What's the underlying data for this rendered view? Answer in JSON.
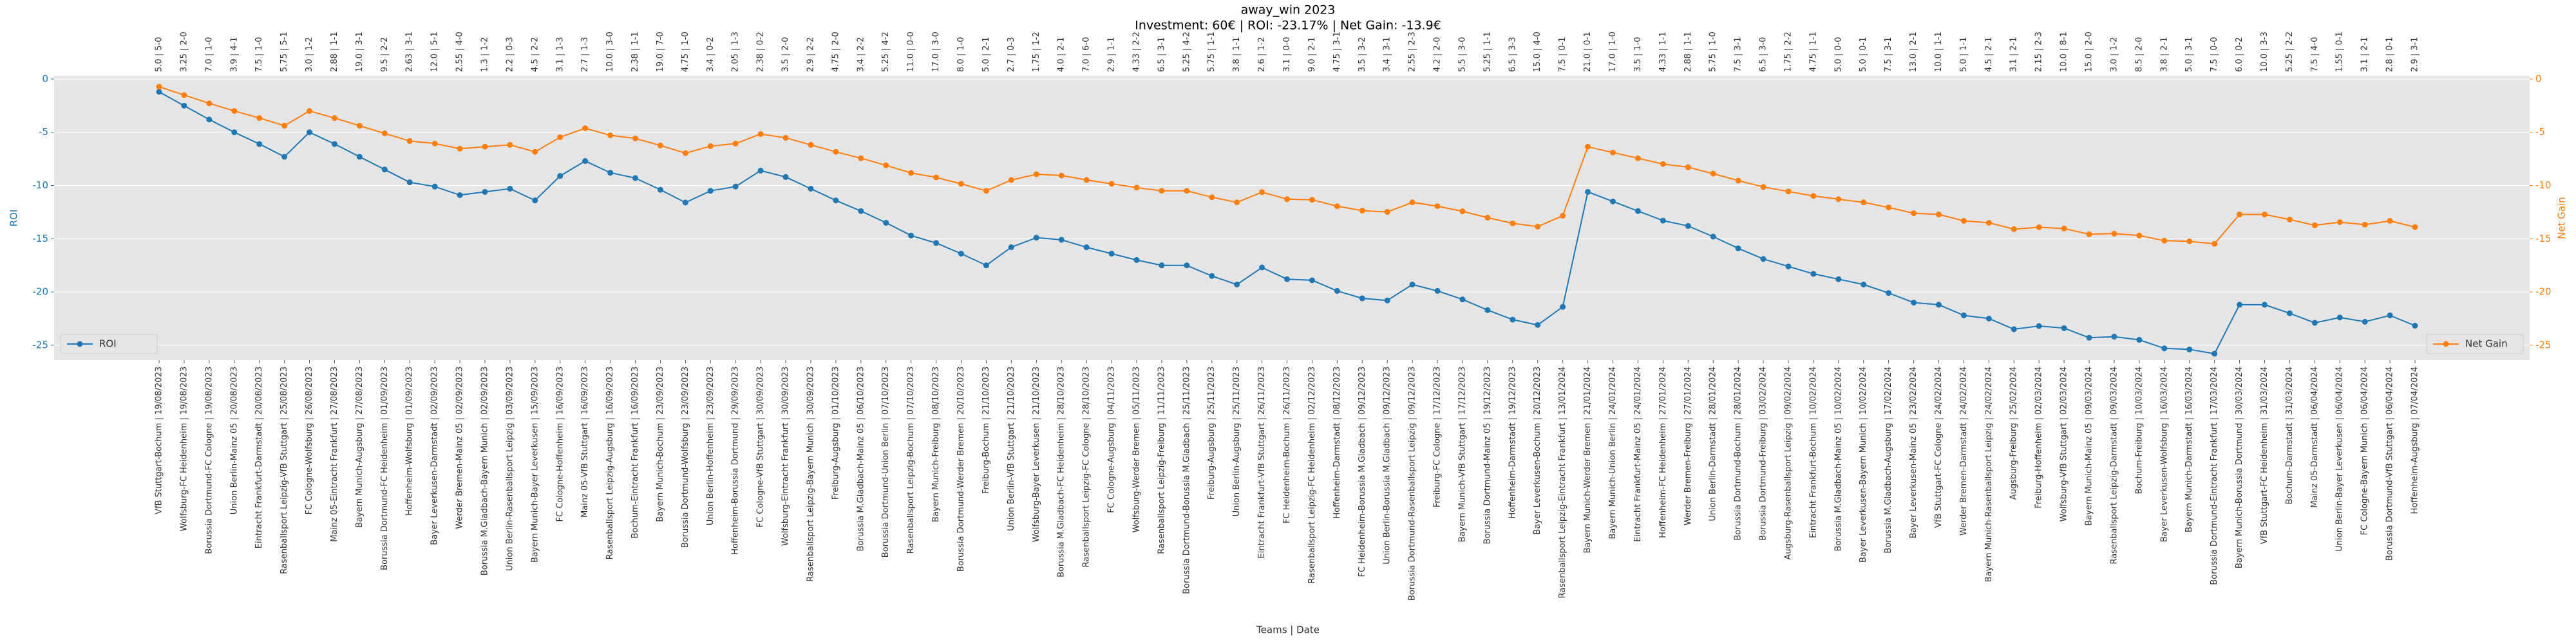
{
  "chart_data": {
    "type": "line",
    "title": "away_win 2023",
    "subtitle": "Investment: 60€ | ROI: -23.17% | Net Gain: -13.9€",
    "xlabel": "Teams | Date",
    "ylabel": "ROI",
    "y2label": "Net Gain",
    "categories": [
      "VfB Stuttgart-Bochum | 19/08/2023",
      "Wolfsburg-FC Heidenheim | 19/08/2023",
      "Borussia Dortmund-FC Cologne | 19/08/2023",
      "Union Berlin-Mainz 05 | 20/08/2023",
      "Eintracht Frankfurt-Darmstadt | 20/08/2023",
      "Rasenballsport Leipzig-VfB Stuttgart | 25/08/2023",
      "FC Cologne-Wolfsburg | 26/08/2023",
      "Mainz 05-Eintracht Frankfurt | 27/08/2023",
      "Bayern Munich-Augsburg | 27/08/2023",
      "Borussia Dortmund-FC Heidenheim | 01/09/2023",
      "Hoffenheim-Wolfsburg | 01/09/2023",
      "Bayer Leverkusen-Darmstadt | 02/09/2023",
      "Werder Bremen-Mainz 05 | 02/09/2023",
      "Borussia M.Gladbach-Bayern Munich | 02/09/2023",
      "Union Berlin-Rasenballsport Leipzig | 03/09/2023",
      "Bayern Munich-Bayer Leverkusen | 15/09/2023",
      "FC Cologne-Hoffenheim | 16/09/2023",
      "Mainz 05-VfB Stuttgart | 16/09/2023",
      "Rasenballsport Leipzig-Augsburg | 16/09/2023",
      "Bochum-Eintracht Frankfurt | 16/09/2023",
      "Bayern Munich-Bochum | 23/09/2023",
      "Borussia Dortmund-Wolfsburg | 23/09/2023",
      "Union Berlin-Hoffenheim | 23/09/2023",
      "Hoffenheim-Borussia Dortmund | 29/09/2023",
      "FC Cologne-VfB Stuttgart | 30/09/2023",
      "Wolfsburg-Eintracht Frankfurt | 30/09/2023",
      "Rasenballsport Leipzig-Bayern Munich | 30/09/2023",
      "Freiburg-Augsburg | 01/10/2023",
      "Borussia M.Gladbach-Mainz 05 | 06/10/2023",
      "Borussia Dortmund-Union Berlin | 07/10/2023",
      "Rasenballsport Leipzig-Bochum | 07/10/2023",
      "Bayern Munich-Freiburg | 08/10/2023",
      "Borussia Dortmund-Werder Bremen | 20/10/2023",
      "Freiburg-Bochum | 21/10/2023",
      "Union Berlin-VfB Stuttgart | 21/10/2023",
      "Wolfsburg-Bayer Leverkusen | 21/10/2023",
      "Borussia M.Gladbach-FC Heidenheim | 28/10/2023",
      "Rasenballsport Leipzig-FC Cologne | 28/10/2023",
      "FC Cologne-Augsburg | 04/11/2023",
      "Wolfsburg-Werder Bremen | 05/11/2023",
      "Rasenballsport Leipzig-Freiburg | 11/11/2023",
      "Borussia Dortmund-Borussia M.Gladbach | 25/11/2023",
      "Freiburg-Augsburg | 25/11/2023",
      "Union Berlin-Augsburg | 25/11/2023",
      "Eintracht Frankfurt-VfB Stuttgart | 26/11/2023",
      "FC Heidenheim-Bochum | 26/11/2023",
      "Rasenballsport Leipzig-FC Heidenheim | 02/12/2023",
      "Hoffenheim-Darmstadt | 08/12/2023",
      "FC Heidenheim-Borussia M.Gladbach | 09/12/2023",
      "Union Berlin-Borussia M.Gladbach | 09/12/2023",
      "Borussia Dortmund-Rasenballsport Leipzig | 09/12/2023",
      "Freiburg-FC Cologne | 17/12/2023",
      "Bayern Munich-VfB Stuttgart | 17/12/2023",
      "Borussia Dortmund-Mainz 05 | 19/12/2023",
      "Hoffenheim-Darmstadt | 19/12/2023",
      "Bayer Leverkusen-Bochum | 20/12/2023",
      "Rasenballsport Leipzig-Eintracht Frankfurt | 13/01/2024",
      "Bayern Munich-Werder Bremen | 21/01/2024",
      "Bayern Munich-Union Berlin | 24/01/2024",
      "Eintracht Frankfurt-Mainz 05 | 24/01/2024",
      "Hoffenheim-FC Heidenheim | 27/01/2024",
      "Werder Bremen-Freiburg | 27/01/2024",
      "Union Berlin-Darmstadt | 28/01/2024",
      "Borussia Dortmund-Bochum | 28/01/2024",
      "Borussia Dortmund-Freiburg | 03/02/2024",
      "Augsburg-Rasenballsport Leipzig | 09/02/2024",
      "Eintracht Frankfurt-Bochum | 10/02/2024",
      "Borussia M.Gladbach-Mainz 05 | 10/02/2024",
      "Bayer Leverkusen-Bayern Munich | 10/02/2024",
      "Borussia M.Gladbach-Augsburg | 17/02/2024",
      "Bayer Leverkusen-Mainz 05 | 23/02/2024",
      "VfB Stuttgart-FC Cologne | 24/02/2024",
      "Werder Bremen-Darmstadt | 24/02/2024",
      "Bayern Munich-Rasenballsport Leipzig | 24/02/2024",
      "Augsburg-Freiburg | 25/02/2024",
      "Freiburg-Hoffenheim | 02/03/2024",
      "Wolfsburg-VfB Stuttgart | 02/03/2024",
      "Bayern Munich-Mainz 05 | 09/03/2024",
      "Rasenballsport Leipzig-Darmstadt | 09/03/2024",
      "Bochum-Freiburg | 10/03/2024",
      "Bayer Leverkusen-Wolfsburg | 16/03/2024",
      "Bayern Munich-Darmstadt | 16/03/2024",
      "Borussia Dortmund-Eintracht Frankfurt | 17/03/2024",
      "Bayern Munich-Borussia Dortmund | 30/03/2024",
      "VfB Stuttgart-FC Heidenheim | 31/03/2024",
      "Bochum-Darmstadt | 31/03/2024",
      "Mainz 05-Darmstadt | 06/04/2024",
      "Union Berlin-Bayer Leverkusen | 06/04/2024",
      "FC Cologne-Bayern Munich | 06/04/2024",
      "Borussia Dortmund-VfB Stuttgart | 06/04/2024",
      "Hoffenheim-Augsburg | 07/04/2024"
    ],
    "top_labels": [
      "5.0 | 5-0",
      "3.25 | 2-0",
      "7.0 | 1-0",
      "3.9 | 4-1",
      "7.5 | 1-0",
      "5.75 | 5-1",
      "3.0 | 1-2",
      "2.88 | 1-1",
      "19.0 | 3-1",
      "9.5 | 2-2",
      "2.63 | 3-1",
      "12.0 | 5-1",
      "2.55 | 4-0",
      "1.3 | 1-2",
      "2.2 | 0-3",
      "4.5 | 2-2",
      "3.1 | 1-3",
      "2.7 | 1-3",
      "10.0 | 3-0",
      "2.38 | 1-1",
      "19.0 | 7-0",
      "4.75 | 1-0",
      "3.4 | 0-2",
      "2.05 | 1-3",
      "2.38 | 0-2",
      "3.5 | 2-0",
      "2.9 | 2-2",
      "4.75 | 2-0",
      "3.4 | 2-2",
      "5.25 | 4-2",
      "11.0 | 0-0",
      "17.0 | 3-0",
      "8.0 | 1-0",
      "5.0 | 2-1",
      "2.7 | 0-3",
      "1.75 | 1-2",
      "4.0 | 2-1",
      "7.0 | 6-0",
      "2.9 | 1-1",
      "4.33 | 2-2",
      "6.5 | 3-1",
      "5.25 | 4-2",
      "5.75 | 1-1",
      "3.8 | 1-1",
      "2.6 | 1-2",
      "3.1 | 0-0",
      "9.0 | 2-1",
      "4.75 | 3-1",
      "3.5 | 3-2",
      "3.4 | 3-1",
      "2.55 | 2-3",
      "4.2 | 2-0",
      "5.5 | 3-0",
      "5.25 | 1-1",
      "6.5 | 3-3",
      "15.0 | 4-0",
      "7.5 | 0-1",
      "21.0 | 0-1",
      "17.0 | 1-0",
      "3.5 | 1-0",
      "4.33 | 1-1",
      "2.88 | 1-1",
      "5.75 | 1-0",
      "7.5 | 3-1",
      "6.5 | 3-0",
      "1.75 | 2-2",
      "4.75 | 1-1",
      "5.0 | 0-0",
      "5.0 | 0-1",
      "7.5 | 3-1",
      "13.0 | 2-1",
      "10.0 | 1-1",
      "5.0 | 1-1",
      "4.5 | 2-1",
      "3.1 | 2-1",
      "2.15 | 2-3",
      "10.0 | 8-1",
      "15.0 | 2-0",
      "3.0 | 1-2",
      "8.5 | 2-0",
      "3.8 | 2-1",
      "5.0 | 3-1",
      "7.5 | 0-0",
      "6.0 | 0-2",
      "10.0 | 3-3",
      "5.25 | 2-2",
      "7.5 | 4-0",
      "1.55 | 0-1",
      "3.1 | 2-1",
      "2.8 | 0-1",
      "2.9 | 3-1"
    ],
    "series": [
      {
        "name": "ROI",
        "color": "#1f77b4",
        "axis": "y",
        "legend": "lower left",
        "values": [
          -1.2,
          -2.5,
          -3.8,
          -5.0,
          -6.1,
          -7.3,
          -5.0,
          -6.1,
          -7.3,
          -8.5,
          -9.7,
          -10.1,
          -10.9,
          -10.6,
          -10.3,
          -11.4,
          -9.1,
          -7.7,
          -8.8,
          -9.3,
          -10.4,
          -11.6,
          -10.5,
          -10.1,
          -8.6,
          -9.2,
          -10.3,
          -11.4,
          -12.4,
          -13.5,
          -14.7,
          -15.4,
          -16.4,
          -17.5,
          -15.8,
          -14.9,
          -15.1,
          -15.8,
          -16.4,
          -17.0,
          -17.5,
          -17.5,
          -18.5,
          -19.3,
          -17.7,
          -18.8,
          -18.9,
          -19.9,
          -20.6,
          -20.8,
          -19.3,
          -19.9,
          -20.7,
          -21.7,
          -22.6,
          -23.1,
          -21.4,
          -10.6,
          -11.5,
          -12.4,
          -13.3,
          -13.8,
          -14.8,
          -15.9,
          -16.9,
          -17.6,
          -18.3,
          -18.8,
          -19.3,
          -20.1,
          -21.0,
          -21.2,
          -22.2,
          -22.5,
          -23.5,
          -23.2,
          -23.4,
          -24.3,
          -24.2,
          -24.5,
          -25.3,
          -25.4,
          -25.8,
          -21.2,
          -21.2,
          -22.0,
          -22.9,
          -22.4,
          -22.8,
          -22.2,
          -23.17
        ]
      },
      {
        "name": "Net Gain",
        "color": "#ff7f0e",
        "axis": "y2",
        "legend": "lower right",
        "values": [
          -0.72,
          -1.5,
          -2.28,
          -3.0,
          -3.66,
          -4.38,
          -3.0,
          -3.66,
          -4.38,
          -5.1,
          -5.82,
          -6.06,
          -6.54,
          -6.36,
          -6.18,
          -6.84,
          -5.46,
          -4.62,
          -5.28,
          -5.58,
          -6.24,
          -6.96,
          -6.3,
          -6.06,
          -5.16,
          -5.52,
          -6.18,
          -6.84,
          -7.44,
          -8.1,
          -8.82,
          -9.24,
          -9.84,
          -10.5,
          -9.48,
          -8.94,
          -9.06,
          -9.48,
          -9.84,
          -10.2,
          -10.5,
          -10.5,
          -11.1,
          -11.58,
          -10.62,
          -11.28,
          -11.34,
          -11.94,
          -12.36,
          -12.48,
          -11.58,
          -11.94,
          -12.42,
          -13.02,
          -13.56,
          -13.86,
          -12.84,
          -6.36,
          -6.9,
          -7.44,
          -7.98,
          -8.28,
          -8.88,
          -9.54,
          -10.14,
          -10.56,
          -10.98,
          -11.28,
          -11.58,
          -12.06,
          -12.6,
          -12.72,
          -13.32,
          -13.5,
          -14.1,
          -13.92,
          -14.04,
          -14.58,
          -14.52,
          -14.7,
          -15.18,
          -15.24,
          -15.48,
          -12.72,
          -12.72,
          -13.2,
          -13.74,
          -13.44,
          -13.68,
          -13.32,
          -13.9
        ]
      }
    ],
    "ylim": [
      -26.4,
      0.3
    ],
    "yticks": [
      0,
      -5,
      -10,
      -15,
      -20,
      -25
    ],
    "y2lim": [
      -26.4,
      0.3
    ],
    "y2ticks": [
      0,
      -5,
      -10,
      -15,
      -20,
      -25
    ],
    "grid": true
  }
}
